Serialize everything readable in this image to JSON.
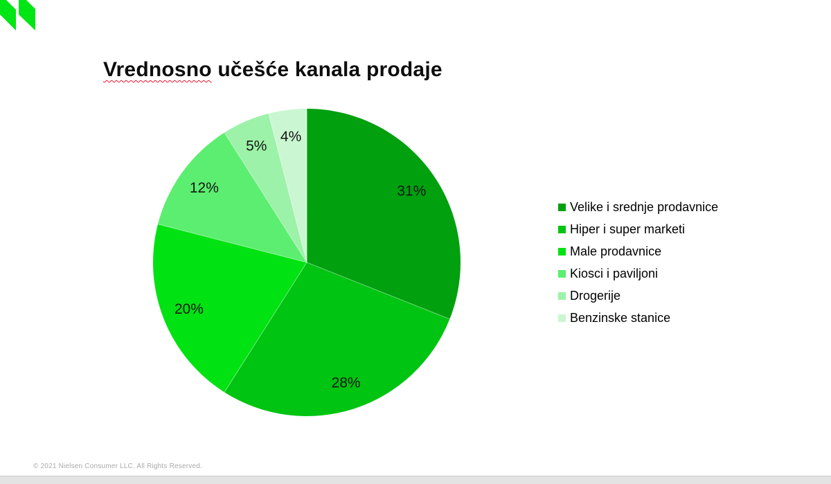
{
  "brand": {
    "logo_name": "nielsen-logo",
    "logo_color": "#00E614"
  },
  "title": {
    "first_word": "Vrednosno",
    "rest": " učešće kanala prodaje",
    "spellcheck_color": "#E8112D"
  },
  "chart_data": {
    "type": "pie",
    "title": "Vrednosno učešće kanala prodaje",
    "labels": [
      "Velike i srednje prodavnice",
      "Hiper i super marketi",
      "Male prodavnice",
      "Kiosci i paviljoni",
      "Drogerije",
      "Benzinske stanice"
    ],
    "values": [
      31,
      28,
      20,
      12,
      5,
      4
    ],
    "data_labels": [
      "31%",
      "28%",
      "20%",
      "12%",
      "5%",
      "4%"
    ],
    "unit": "%",
    "colors": [
      "#00A00F",
      "#00C412",
      "#00E211",
      "#5CEE70",
      "#9CF2A8",
      "#CAF7D1"
    ],
    "start_angle_deg": 0,
    "direction": "clockwise",
    "legend_position": "right",
    "labels_inside": true
  },
  "footer": {
    "copyright": "© 2021 Nielsen Consumer LLC. All Rights Reserved."
  }
}
